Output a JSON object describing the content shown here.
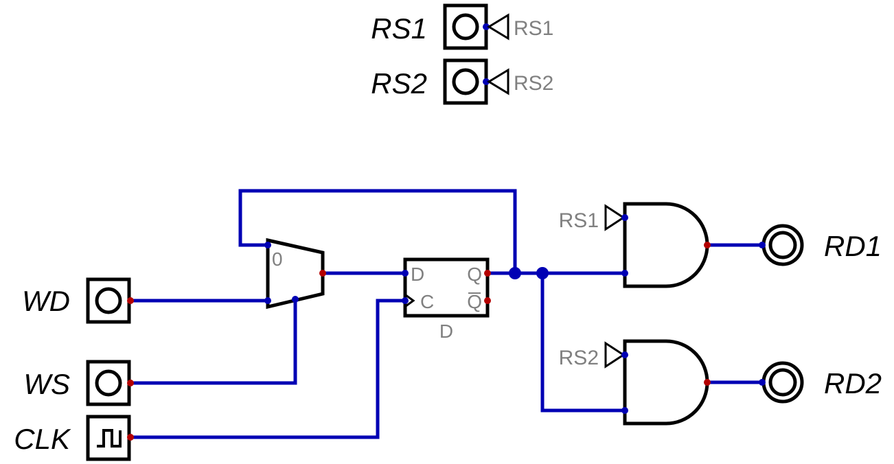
{
  "inputs": {
    "wd": "WD",
    "ws": "WS",
    "clk": "CLK",
    "rs1": "RS1",
    "rs2": "RS2"
  },
  "outputs": {
    "rd1": "RD1",
    "rd2": "RD2"
  },
  "tunnels": {
    "rs1_source": "RS1",
    "rs2_source": "RS2",
    "rs1_and": "RS1",
    "rs2_and": "RS2"
  },
  "mux": {
    "select_zero_label": "0"
  },
  "flipflop": {
    "d_pin": "D",
    "c_pin": "C",
    "q_pin": "Q",
    "qbar_pin": "Q",
    "name": "D"
  },
  "colors": {
    "wire": "#0000b4",
    "input_pin": "#0000b4",
    "output_pin": "#b40000",
    "component": "#000000",
    "label": "#808080"
  }
}
